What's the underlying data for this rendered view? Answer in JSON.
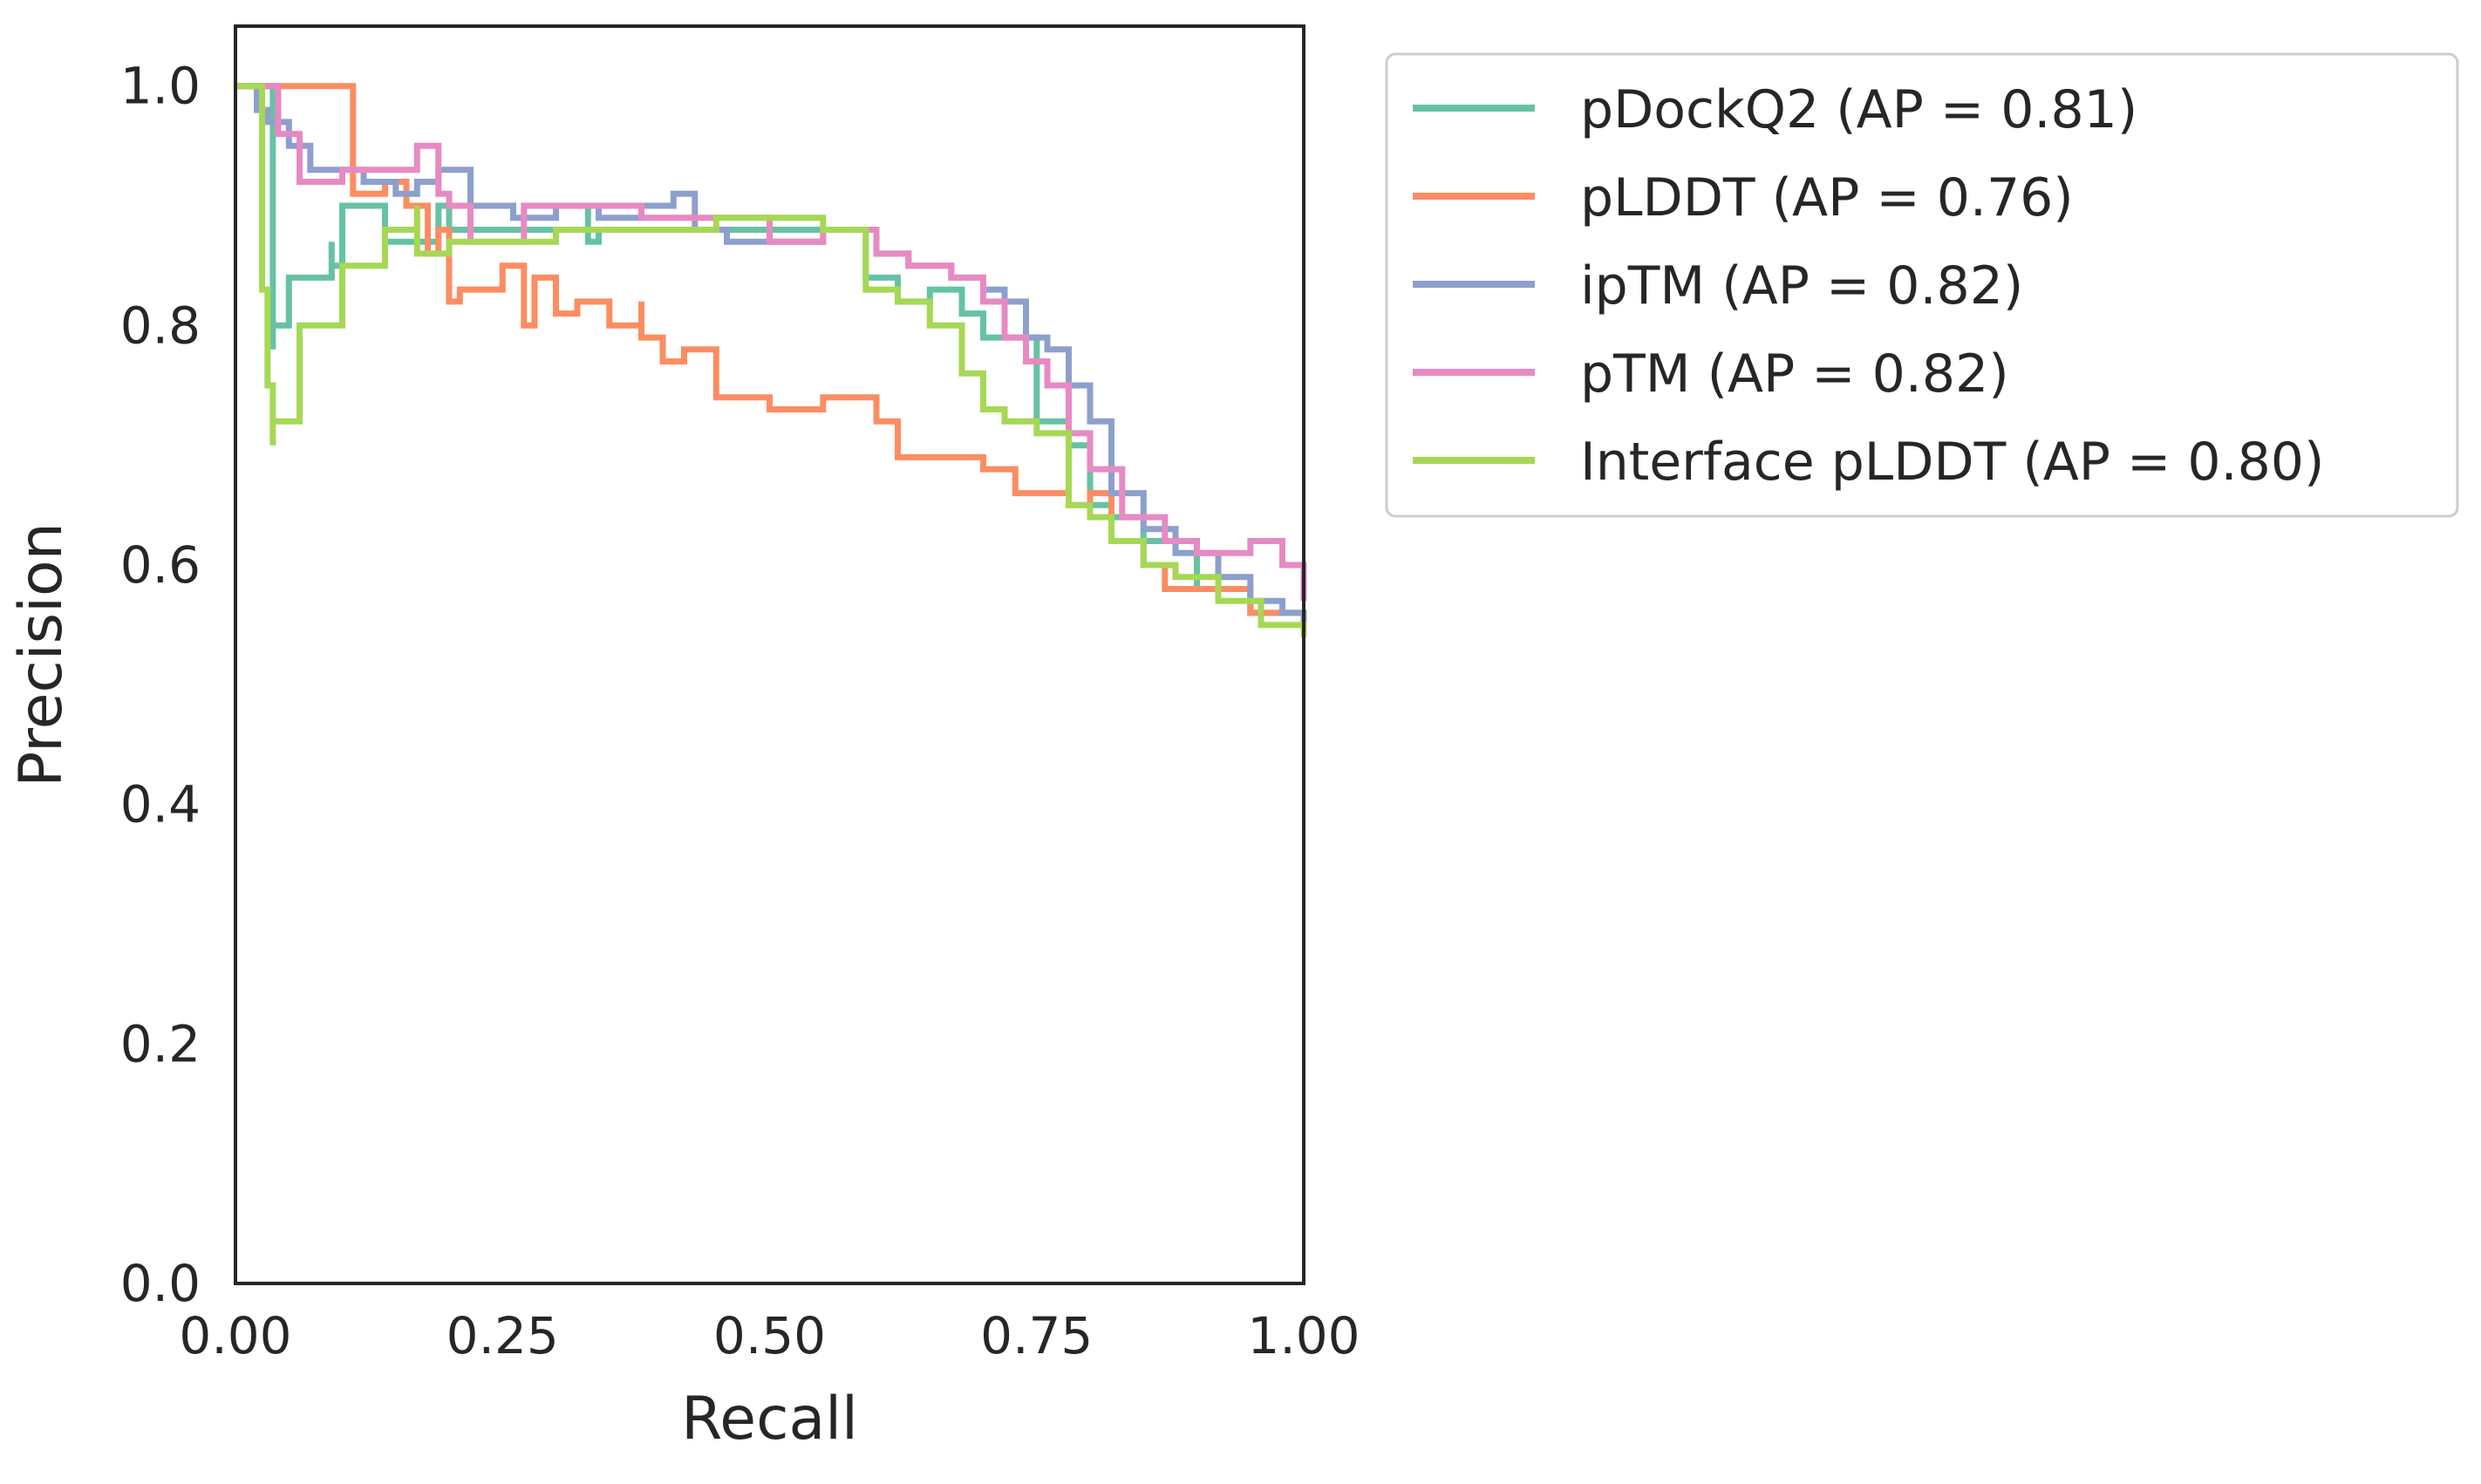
{
  "chart_data": {
    "type": "line",
    "title": "",
    "xlabel": "Recall",
    "ylabel": "Precision",
    "xlim": [
      0.0,
      1.0
    ],
    "ylim": [
      0.0,
      1.05
    ],
    "xticks": [
      "0.00",
      "0.25",
      "0.50",
      "0.75",
      "1.00"
    ],
    "yticks": [
      "0.0",
      "0.2",
      "0.4",
      "0.6",
      "0.8",
      "1.0"
    ],
    "grid": false,
    "legend_position": "outside upper right",
    "series": [
      {
        "name": "pDockQ2 (AP = 0.81)",
        "color": "#66c2a5",
        "x": [
          0,
          0.03,
          0.035,
          0.035,
          0.05,
          0.09,
          0.09,
          0.1,
          0.14,
          0.14,
          0.19,
          0.2,
          0.2,
          0.28,
          0.33,
          0.33,
          0.34,
          0.38,
          0.45,
          0.5,
          0.55,
          0.59,
          0.59,
          0.62,
          0.65,
          0.68,
          0.7,
          0.72,
          0.75,
          0.75,
          0.78,
          0.8,
          0.82,
          0.85,
          0.9,
          0.95,
          1.0
        ],
        "y": [
          1.0,
          1.0,
          0.78,
          0.8,
          0.84,
          0.87,
          0.85,
          0.9,
          0.9,
          0.87,
          0.9,
          0.84,
          0.88,
          0.88,
          0.9,
          0.87,
          0.88,
          0.88,
          0.88,
          0.88,
          0.88,
          0.87,
          0.84,
          0.82,
          0.83,
          0.81,
          0.79,
          0.79,
          0.75,
          0.72,
          0.7,
          0.65,
          0.64,
          0.62,
          0.58,
          0.56,
          0.54
        ]
      },
      {
        "name": "pLDDT (AP = 0.76)",
        "color": "#fc8d62",
        "x": [
          0,
          0.1,
          0.11,
          0.14,
          0.16,
          0.17,
          0.18,
          0.19,
          0.2,
          0.21,
          0.25,
          0.27,
          0.28,
          0.3,
          0.32,
          0.35,
          0.38,
          0.38,
          0.4,
          0.42,
          0.45,
          0.47,
          0.5,
          0.55,
          0.59,
          0.6,
          0.62,
          0.65,
          0.7,
          0.73,
          0.78,
          0.8,
          0.82,
          0.85,
          0.87,
          0.9,
          0.95,
          1.0
        ],
        "y": [
          1.0,
          1.0,
          0.91,
          0.92,
          0.9,
          0.9,
          0.86,
          0.88,
          0.82,
          0.83,
          0.85,
          0.8,
          0.84,
          0.81,
          0.82,
          0.8,
          0.82,
          0.79,
          0.77,
          0.78,
          0.74,
          0.74,
          0.73,
          0.74,
          0.74,
          0.72,
          0.69,
          0.69,
          0.68,
          0.66,
          0.65,
          0.66,
          0.62,
          0.6,
          0.58,
          0.58,
          0.56,
          0.54
        ]
      },
      {
        "name": "ipTM (AP = 0.82)",
        "color": "#8da0cb",
        "x": [
          0,
          0.01,
          0.02,
          0.03,
          0.05,
          0.07,
          0.12,
          0.15,
          0.17,
          0.19,
          0.22,
          0.26,
          0.3,
          0.34,
          0.38,
          0.41,
          0.43,
          0.46,
          0.5,
          0.55,
          0.6,
          0.63,
          0.67,
          0.7,
          0.72,
          0.74,
          0.76,
          0.78,
          0.8,
          0.82,
          0.85,
          0.88,
          0.92,
          0.95,
          0.98,
          1.0
        ],
        "y": [
          1.0,
          1.0,
          0.98,
          0.97,
          0.95,
          0.93,
          0.92,
          0.91,
          0.92,
          0.93,
          0.9,
          0.89,
          0.9,
          0.89,
          0.9,
          0.91,
          0.88,
          0.87,
          0.87,
          0.88,
          0.86,
          0.85,
          0.84,
          0.83,
          0.82,
          0.79,
          0.78,
          0.75,
          0.72,
          0.66,
          0.63,
          0.61,
          0.59,
          0.57,
          0.56,
          0.55
        ]
      },
      {
        "name": "pTM (AP = 0.82)",
        "color": "#e78ac3",
        "x": [
          0,
          0.02,
          0.04,
          0.06,
          0.1,
          0.14,
          0.17,
          0.19,
          0.2,
          0.22,
          0.27,
          0.33,
          0.38,
          0.44,
          0.5,
          0.55,
          0.6,
          0.63,
          0.67,
          0.7,
          0.72,
          0.74,
          0.76,
          0.78,
          0.8,
          0.83,
          0.87,
          0.9,
          0.95,
          0.98,
          1.0
        ],
        "y": [
          1.0,
          1.0,
          0.96,
          0.92,
          0.93,
          0.93,
          0.95,
          0.91,
          0.9,
          0.87,
          0.9,
          0.9,
          0.89,
          0.89,
          0.87,
          0.88,
          0.86,
          0.85,
          0.84,
          0.82,
          0.79,
          0.77,
          0.75,
          0.71,
          0.68,
          0.64,
          0.62,
          0.61,
          0.62,
          0.6,
          0.57
        ]
      },
      {
        "name": "Interface pLDDT (AP = 0.80)",
        "color": "#a6d854",
        "x": [
          0,
          0.02,
          0.025,
          0.03,
          0.035,
          0.035,
          0.06,
          0.1,
          0.14,
          0.17,
          0.17,
          0.2,
          0.25,
          0.3,
          0.38,
          0.45,
          0.5,
          0.55,
          0.59,
          0.59,
          0.62,
          0.65,
          0.68,
          0.7,
          0.72,
          0.75,
          0.77,
          0.78,
          0.78,
          0.8,
          0.82,
          0.85,
          0.88,
          0.92,
          0.96,
          1.0
        ],
        "y": [
          1.0,
          1.0,
          0.83,
          0.75,
          0.7,
          0.72,
          0.8,
          0.85,
          0.88,
          0.9,
          0.86,
          0.87,
          0.87,
          0.88,
          0.88,
          0.89,
          0.89,
          0.88,
          0.86,
          0.83,
          0.82,
          0.8,
          0.76,
          0.73,
          0.72,
          0.71,
          0.71,
          0.69,
          0.65,
          0.64,
          0.62,
          0.6,
          0.59,
          0.57,
          0.55,
          0.54
        ]
      }
    ]
  }
}
